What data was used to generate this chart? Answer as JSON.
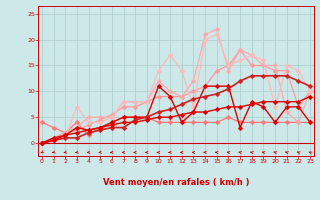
{
  "xlabel": "Vent moyen/en rafales ( km/h )",
  "bg_color": "#cce8e8",
  "grid_color": "#aacccc",
  "x_ticks": [
    0,
    1,
    2,
    3,
    4,
    5,
    6,
    7,
    8,
    9,
    10,
    11,
    12,
    13,
    14,
    15,
    16,
    17,
    18,
    19,
    20,
    21,
    22,
    23
  ],
  "y_ticks": [
    0,
    5,
    10,
    15,
    20,
    25
  ],
  "xlim": [
    -0.3,
    23.3
  ],
  "ylim": [
    -2.5,
    26.5
  ],
  "lines": [
    {
      "x": [
        0,
        1,
        2,
        3,
        4,
        5,
        6,
        7,
        8,
        9,
        10,
        11,
        12,
        13,
        14,
        15,
        16,
        17,
        18,
        19,
        20,
        21,
        22,
        23
      ],
      "y": [
        0,
        0.5,
        1.5,
        2,
        2.5,
        3,
        3.5,
        4,
        4,
        4.5,
        5,
        5,
        5.5,
        6,
        6,
        6.5,
        7,
        7,
        7.5,
        8,
        8,
        8,
        8,
        9
      ],
      "color": "#dd0000",
      "lw": 1.0,
      "ms": 2.5,
      "zorder": 5
    },
    {
      "x": [
        0,
        1,
        2,
        3,
        4,
        5,
        6,
        7,
        8,
        9,
        10,
        11,
        12,
        13,
        14,
        15,
        16,
        17,
        18,
        19,
        20,
        21,
        22,
        23
      ],
      "y": [
        0,
        1,
        1.5,
        3,
        2.5,
        3,
        4,
        5,
        5,
        5,
        11,
        9,
        4,
        6,
        11,
        11,
        11,
        3,
        8,
        7,
        4,
        7,
        7,
        4
      ],
      "color": "#dd0000",
      "lw": 1.0,
      "ms": 2.5,
      "zorder": 4
    },
    {
      "x": [
        0,
        1,
        2,
        3,
        4,
        5,
        6,
        7,
        8,
        9,
        10,
        11,
        12,
        13,
        14,
        15,
        16,
        17,
        18,
        19,
        20,
        21,
        22,
        23
      ],
      "y": [
        4,
        3,
        2,
        4,
        1.5,
        3,
        4,
        5,
        5,
        5,
        4,
        4,
        4,
        4,
        4,
        4,
        5,
        4,
        4,
        4,
        4,
        4,
        4,
        4
      ],
      "color": "#ff7777",
      "lw": 0.9,
      "ms": 2.5,
      "zorder": 3
    },
    {
      "x": [
        0,
        1,
        2,
        3,
        4,
        5,
        6,
        7,
        8,
        9,
        10,
        11,
        12,
        13,
        14,
        15,
        16,
        17,
        18,
        19,
        20,
        21,
        22,
        23
      ],
      "y": [
        0,
        1,
        2,
        2.5,
        3.5,
        4.5,
        5.5,
        7,
        7,
        8,
        9,
        9,
        9,
        10,
        11,
        14,
        15,
        18,
        15,
        15,
        14,
        14,
        7,
        10
      ],
      "color": "#ff9999",
      "lw": 0.9,
      "ms": 2.5,
      "zorder": 3
    },
    {
      "x": [
        0,
        1,
        2,
        3,
        4,
        5,
        6,
        7,
        8,
        9,
        10,
        11,
        12,
        13,
        14,
        15,
        16,
        17,
        18,
        19,
        20,
        21,
        22,
        23
      ],
      "y": [
        0,
        1,
        2,
        3,
        5,
        5,
        5,
        8,
        8,
        8,
        12,
        10,
        9,
        12,
        21,
        22,
        14,
        18,
        17,
        15,
        15,
        6,
        4,
        10
      ],
      "color": "#ffaaaa",
      "lw": 0.9,
      "ms": 2.5,
      "zorder": 3
    },
    {
      "x": [
        0,
        1,
        2,
        3,
        4,
        5,
        6,
        7,
        8,
        9,
        10,
        11,
        12,
        13,
        14,
        15,
        16,
        17,
        18,
        19,
        20,
        21,
        22,
        23
      ],
      "y": [
        0,
        0.5,
        1,
        7,
        4,
        4,
        5,
        8,
        8,
        8,
        14,
        17,
        14,
        7,
        20,
        21,
        15,
        16,
        17,
        16,
        7,
        15,
        14,
        10
      ],
      "color": "#ffbbbb",
      "lw": 0.9,
      "ms": 2.5,
      "zorder": 3
    },
    {
      "x": [
        0,
        1,
        2,
        3,
        4,
        5,
        6,
        7,
        8,
        9,
        10,
        11,
        12,
        13,
        14,
        15,
        16,
        17,
        18,
        19,
        20,
        21,
        22,
        23
      ],
      "y": [
        0,
        0.5,
        1,
        1,
        2,
        2.5,
        3,
        3,
        4.5,
        5,
        6,
        6.5,
        7.5,
        8.5,
        9,
        9.5,
        10.5,
        12,
        13,
        13,
        13,
        13,
        12,
        11
      ],
      "color": "#cc2222",
      "lw": 1.2,
      "ms": 2.5,
      "zorder": 4
    }
  ],
  "arrow_angles": [
    225,
    215,
    210,
    210,
    200,
    195,
    190,
    190,
    185,
    185,
    180,
    180,
    175,
    175,
    170,
    165,
    160,
    155,
    150,
    150,
    145,
    145,
    140,
    135
  ]
}
